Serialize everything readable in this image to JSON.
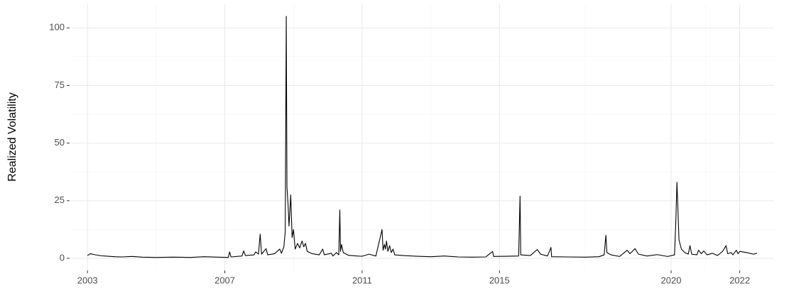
{
  "chart_data": {
    "type": "line",
    "y_label": "Realized Volatility",
    "color": "#000000",
    "grid": true,
    "xlim": [
      2002.52,
      2023.0
    ],
    "ylim": [
      -5.25,
      110.25
    ],
    "xticks": [
      2003,
      2007,
      2011,
      2015,
      2020,
      2022
    ],
    "yticks": [
      0,
      25,
      50,
      75,
      100
    ],
    "x": [
      2003.0,
      2003.08,
      2003.2,
      2003.4,
      2003.6,
      2003.8,
      2004.0,
      2004.3,
      2004.6,
      2005.0,
      2005.5,
      2006.0,
      2006.4,
      2006.8,
      2007.1,
      2007.14,
      2007.18,
      2007.5,
      2007.55,
      2007.6,
      2007.85,
      2007.9,
      2007.98,
      2008.03,
      2008.07,
      2008.2,
      2008.25,
      2008.45,
      2008.6,
      2008.65,
      2008.72,
      2008.76,
      2008.79,
      2008.81,
      2008.84,
      2008.87,
      2008.92,
      2008.96,
      2009.0,
      2009.05,
      2009.12,
      2009.18,
      2009.25,
      2009.3,
      2009.35,
      2009.4,
      2009.55,
      2009.75,
      2009.85,
      2009.9,
      2010.1,
      2010.15,
      2010.25,
      2010.32,
      2010.35,
      2010.37,
      2010.4,
      2010.45,
      2010.6,
      2010.85,
      2011.0,
      2011.2,
      2011.4,
      2011.58,
      2011.61,
      2011.65,
      2011.68,
      2011.71,
      2011.75,
      2011.8,
      2011.85,
      2011.9,
      2011.95,
      2012.2,
      2012.6,
      2013.0,
      2013.4,
      2013.8,
      2014.2,
      2014.6,
      2014.8,
      2014.83,
      2015.2,
      2015.56,
      2015.6,
      2015.62,
      2015.9,
      2016.0,
      2016.1,
      2016.2,
      2016.4,
      2016.5,
      2016.52,
      2017.0,
      2017.5,
      2017.9,
      2018.05,
      2018.1,
      2018.13,
      2018.25,
      2018.5,
      2018.72,
      2018.8,
      2018.95,
      2019.05,
      2019.3,
      2019.6,
      2019.9,
      2020.1,
      2020.14,
      2020.17,
      2020.19,
      2020.23,
      2020.3,
      2020.4,
      2020.5,
      2020.55,
      2020.6,
      2020.75,
      2020.8,
      2020.88,
      2020.95,
      2021.05,
      2021.2,
      2021.35,
      2021.5,
      2021.6,
      2021.65,
      2021.75,
      2021.8,
      2021.9,
      2021.95,
      2022.0,
      2022.2,
      2022.4,
      2022.5
    ],
    "values": [
      1.2,
      2.0,
      1.6,
      1.1,
      0.9,
      0.7,
      0.6,
      0.8,
      0.5,
      0.4,
      0.5,
      0.4,
      0.7,
      0.5,
      0.4,
      2.8,
      0.6,
      1.0,
      3.2,
      1.2,
      1.5,
      2.8,
      1.8,
      10.5,
      1.8,
      4.2,
      1.5,
      2.0,
      4.0,
      2.2,
      5.0,
      11.5,
      105,
      31,
      24,
      14,
      27.5,
      9,
      12.5,
      4,
      6.5,
      4.5,
      7.5,
      5,
      6.5,
      3,
      2,
      1.5,
      4,
      1.5,
      2.2,
      1.0,
      2.5,
      1.5,
      21,
      3,
      6,
      2.5,
      1.3,
      1.0,
      0.9,
      1.8,
      1.0,
      12.5,
      3.5,
      6,
      4,
      7.5,
      3,
      5.5,
      2.5,
      4,
      1.5,
      1.2,
      0.9,
      0.7,
      1.0,
      0.6,
      0.5,
      0.6,
      3.0,
      0.8,
      0.9,
      1.0,
      27,
      1.5,
      1.2,
      2.5,
      3.8,
      1.8,
      1.0,
      4.7,
      0.7,
      0.6,
      0.5,
      0.7,
      1.5,
      10,
      2.5,
      1.5,
      0.8,
      3.5,
      2,
      4.2,
      1.8,
      1.0,
      1.6,
      0.8,
      1.5,
      17,
      33,
      25,
      8,
      4,
      2.5,
      1.8,
      5.5,
      1.8,
      1.5,
      3.5,
      2,
      3.2,
      1.5,
      2.2,
      1.2,
      3,
      5.5,
      2,
      2.5,
      1.5,
      3.5,
      2,
      3,
      2.5,
      1.8,
      2.2
    ]
  }
}
